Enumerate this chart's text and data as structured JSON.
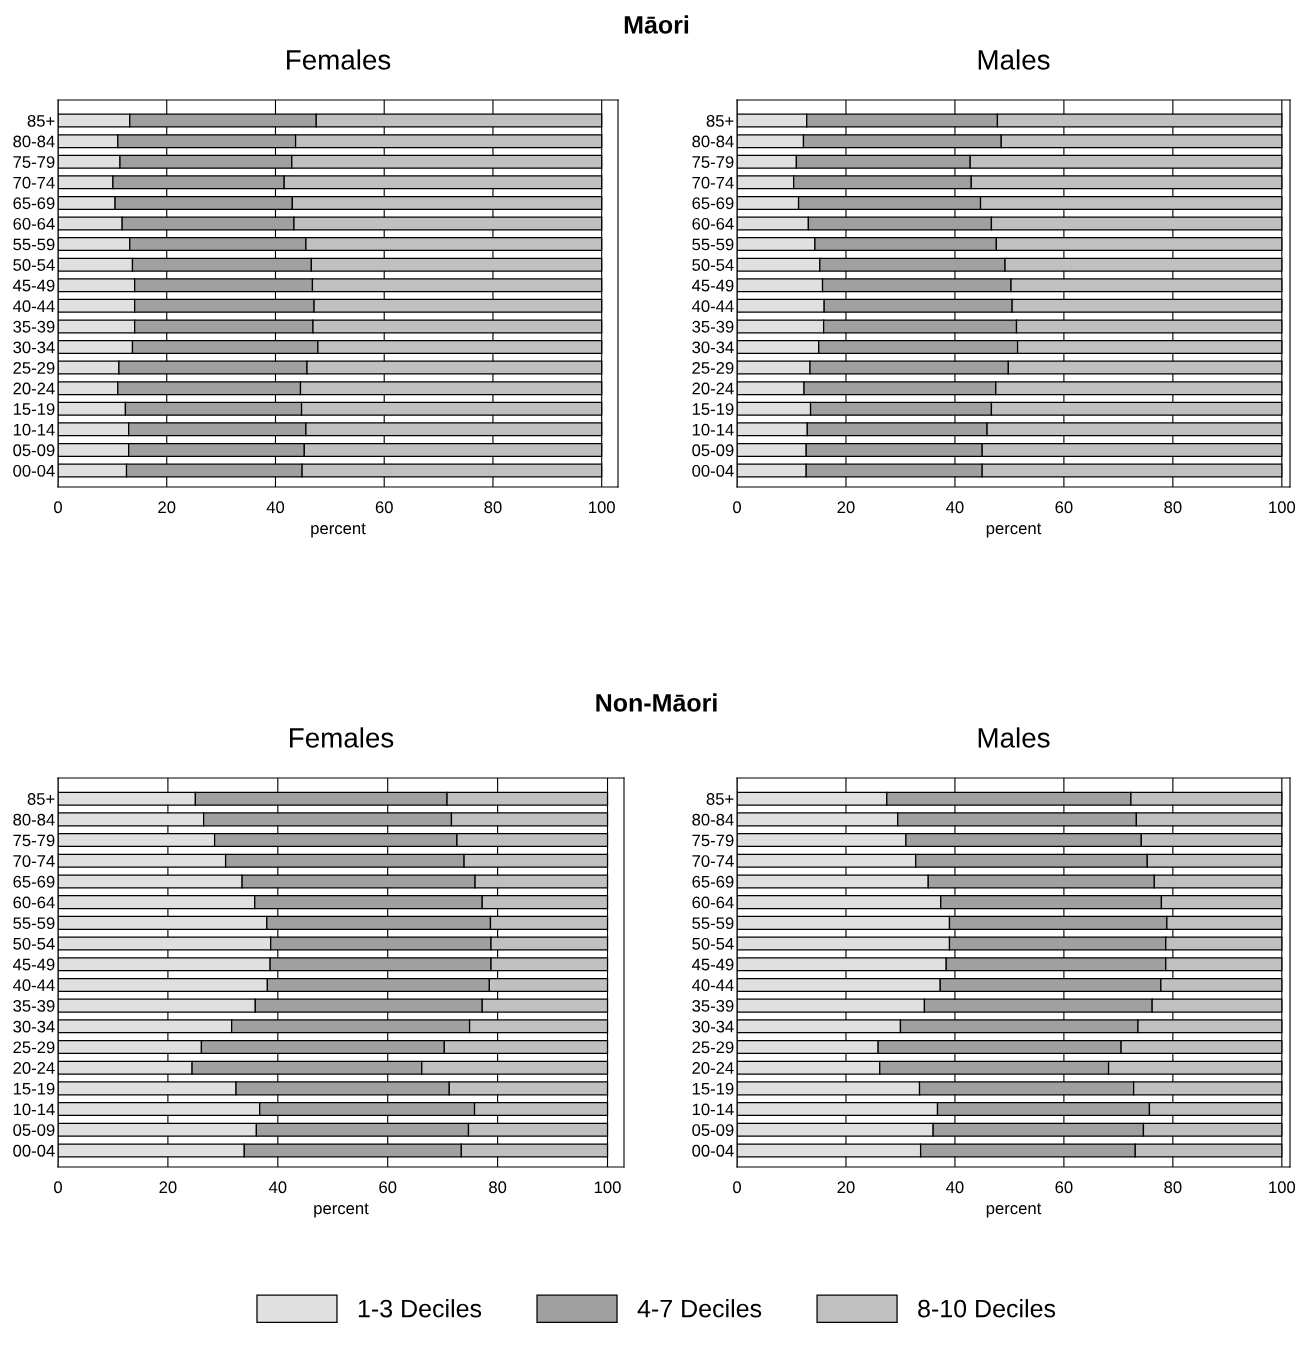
{
  "chart_data": [
    {
      "type": "bar",
      "orientation": "horizontal",
      "stacked": true,
      "title": "Females",
      "xlabel": "percent",
      "annotations": [
        "Māori"
      ],
      "grid": "x",
      "legend": "bottom",
      "categories": [
        "85+",
        "80-84",
        "75-79",
        "70-74",
        "65-69",
        "60-64",
        "55-59",
        "50-54",
        "45-49",
        "40-44",
        "35-39",
        "30-34",
        "25-29",
        "20-24",
        "15-19",
        "10-14",
        "05-09",
        "00-04"
      ],
      "xlim": [
        0,
        103
      ],
      "xticks": [
        0,
        20,
        40,
        60,
        80,
        100
      ],
      "series": [
        {
          "name": "1-3 Deciles",
          "color": "#e0e0e0",
          "values": [
            13.2,
            11.0,
            11.4,
            10.1,
            10.5,
            11.8,
            13.2,
            13.7,
            14.1,
            14.1,
            14.1,
            13.7,
            11.2,
            11.0,
            12.4,
            13.0,
            13.0,
            12.6
          ]
        },
        {
          "name": "4-7 Deciles",
          "color": "#a0a0a0",
          "values": [
            34.3,
            32.7,
            31.6,
            31.5,
            32.6,
            31.6,
            32.4,
            32.9,
            32.7,
            33.0,
            32.8,
            34.1,
            34.6,
            33.6,
            32.4,
            32.6,
            32.3,
            32.3
          ]
        },
        {
          "name": "8-10 Deciles",
          "color": "#c0c0c0",
          "values": [
            52.5,
            56.3,
            57.0,
            58.4,
            56.9,
            56.6,
            54.4,
            53.4,
            53.2,
            52.9,
            53.1,
            52.2,
            54.2,
            55.4,
            55.2,
            54.4,
            54.7,
            55.1
          ]
        }
      ]
    },
    {
      "type": "bar",
      "orientation": "horizontal",
      "stacked": true,
      "title": "Males",
      "xlabel": "percent",
      "grid": "x",
      "categories": [
        "85+",
        "80-84",
        "75-79",
        "70-74",
        "65-69",
        "60-64",
        "55-59",
        "50-54",
        "45-49",
        "40-44",
        "35-39",
        "30-34",
        "25-29",
        "20-24",
        "15-19",
        "10-14",
        "05-09",
        "00-04"
      ],
      "xlim": [
        0,
        101.5
      ],
      "xticks": [
        0,
        20,
        40,
        60,
        80,
        100
      ],
      "series": [
        {
          "color": "#e0e0e0",
          "values": [
            12.8,
            12.2,
            10.9,
            10.4,
            11.3,
            13.1,
            14.3,
            15.2,
            15.7,
            16.0,
            15.9,
            15.0,
            13.4,
            12.3,
            13.5,
            12.9,
            12.7,
            12.7
          ]
        },
        {
          "color": "#a0a0a0",
          "values": [
            35.0,
            36.3,
            31.9,
            32.6,
            33.4,
            33.6,
            33.3,
            34.0,
            34.6,
            34.5,
            35.4,
            36.5,
            36.4,
            35.2,
            33.2,
            33.0,
            32.3,
            32.3
          ]
        },
        {
          "color": "#c0c0c0",
          "values": [
            52.2,
            51.5,
            57.2,
            57.0,
            55.3,
            53.3,
            52.4,
            50.8,
            49.7,
            49.5,
            48.7,
            48.5,
            50.2,
            52.5,
            53.3,
            54.1,
            55.0,
            55.0
          ]
        }
      ]
    },
    {
      "type": "bar",
      "orientation": "horizontal",
      "stacked": true,
      "title": "Females",
      "xlabel": "percent",
      "annotations": [
        "Non-Māori"
      ],
      "grid": "x",
      "categories": [
        "85+",
        "80-84",
        "75-79",
        "70-74",
        "65-69",
        "60-64",
        "55-59",
        "50-54",
        "45-49",
        "40-44",
        "35-39",
        "30-34",
        "25-29",
        "20-24",
        "15-19",
        "10-14",
        "05-09",
        "00-04"
      ],
      "xlim": [
        0,
        103
      ],
      "xticks": [
        0,
        20,
        40,
        60,
        80,
        100
      ],
      "series": [
        {
          "color": "#e0e0e0",
          "values": [
            25.0,
            26.5,
            28.5,
            30.5,
            33.5,
            35.8,
            38.0,
            38.7,
            38.6,
            38.1,
            35.9,
            31.6,
            26.1,
            24.4,
            32.4,
            36.7,
            36.1,
            33.9
          ]
        },
        {
          "color": "#a0a0a0",
          "values": [
            45.8,
            45.1,
            44.1,
            43.4,
            42.4,
            41.4,
            40.7,
            40.1,
            40.2,
            40.4,
            41.3,
            43.3,
            44.2,
            41.8,
            38.8,
            39.1,
            38.6,
            39.5
          ]
        },
        {
          "color": "#c0c0c0",
          "values": [
            29.2,
            28.4,
            27.4,
            26.1,
            24.1,
            22.8,
            21.3,
            21.2,
            21.2,
            21.5,
            22.8,
            25.1,
            29.7,
            33.8,
            28.8,
            24.2,
            25.3,
            26.6
          ]
        }
      ]
    },
    {
      "type": "bar",
      "orientation": "horizontal",
      "stacked": true,
      "title": "Males",
      "xlabel": "percent",
      "grid": "x",
      "categories": [
        "85+",
        "80-84",
        "75-79",
        "70-74",
        "65-69",
        "60-64",
        "55-59",
        "50-54",
        "45-49",
        "40-44",
        "35-39",
        "30-34",
        "25-29",
        "20-24",
        "15-19",
        "10-14",
        "05-09",
        "00-04"
      ],
      "xlim": [
        0,
        101.5
      ],
      "xticks": [
        0,
        20,
        40,
        60,
        80,
        100
      ],
      "series": [
        {
          "color": "#e0e0e0",
          "values": [
            27.5,
            29.5,
            31.0,
            32.8,
            35.1,
            37.4,
            39.0,
            39.0,
            38.4,
            37.3,
            34.4,
            30.0,
            25.9,
            26.2,
            33.5,
            36.8,
            36.0,
            33.7
          ]
        },
        {
          "color": "#a0a0a0",
          "values": [
            44.8,
            43.8,
            43.2,
            42.5,
            41.5,
            40.5,
            39.9,
            39.7,
            40.3,
            40.5,
            41.8,
            43.6,
            44.6,
            42.0,
            39.3,
            38.9,
            38.6,
            39.4
          ]
        },
        {
          "color": "#c0c0c0",
          "values": [
            27.7,
            26.7,
            25.8,
            24.7,
            23.4,
            22.1,
            21.1,
            21.3,
            21.3,
            22.2,
            23.8,
            26.4,
            29.5,
            31.8,
            27.2,
            24.3,
            25.4,
            26.9
          ]
        }
      ]
    }
  ]
}
